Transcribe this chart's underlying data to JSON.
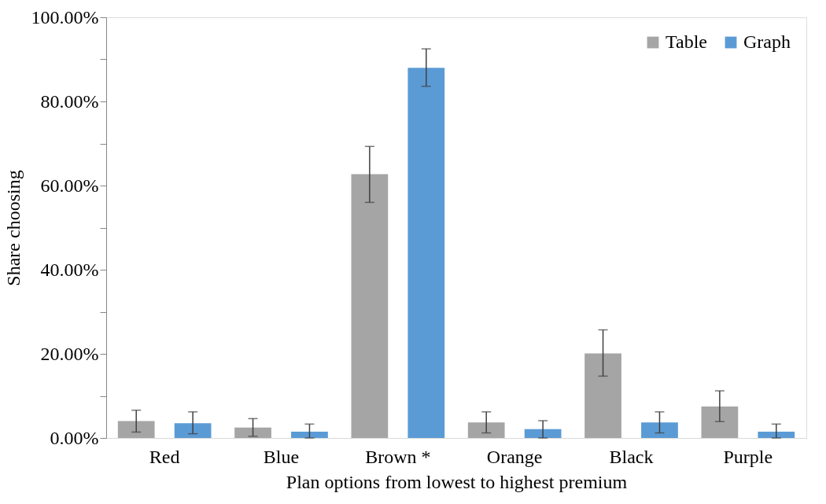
{
  "chart_data": {
    "type": "bar",
    "xlabel": "Plan options from lowest to highest premium",
    "ylabel": "Share choosing",
    "categories": [
      "Red",
      "Blue",
      "Brown *",
      "Orange",
      "Black",
      "Purple"
    ],
    "series": [
      {
        "name": "Table",
        "color": "#a5a5a5",
        "values": [
          4.0,
          2.5,
          62.7,
          3.7,
          20.1,
          7.5
        ],
        "errors": [
          [
            1.4,
            6.6
          ],
          [
            0.4,
            4.6
          ],
          [
            56.0,
            69.3
          ],
          [
            1.2,
            6.2
          ],
          [
            14.7,
            25.7
          ],
          [
            3.9,
            11.2
          ]
        ]
      },
      {
        "name": "Graph",
        "color": "#5b9bd5",
        "values": [
          3.5,
          1.5,
          88.0,
          2.1,
          3.7,
          1.5
        ],
        "errors": [
          [
            1.0,
            6.2
          ],
          [
            0.0,
            3.3
          ],
          [
            83.6,
            92.5
          ],
          [
            0.0,
            4.1
          ],
          [
            1.2,
            6.2
          ],
          [
            0.0,
            3.3
          ]
        ]
      }
    ],
    "ylim": [
      0,
      100
    ],
    "yticks": [
      {
        "value": 0,
        "label": "0.00%"
      },
      {
        "value": 10,
        "label": null
      },
      {
        "value": 20,
        "label": "20.00%"
      },
      {
        "value": 30,
        "label": null
      },
      {
        "value": 40,
        "label": "40.00%"
      },
      {
        "value": 50,
        "label": null
      },
      {
        "value": 60,
        "label": "60.00%"
      },
      {
        "value": 70,
        "label": null
      },
      {
        "value": 80,
        "label": "80.00%"
      },
      {
        "value": 90,
        "label": null
      },
      {
        "value": 100,
        "label": "100.00%"
      }
    ],
    "grid": false,
    "legend": "top right"
  }
}
